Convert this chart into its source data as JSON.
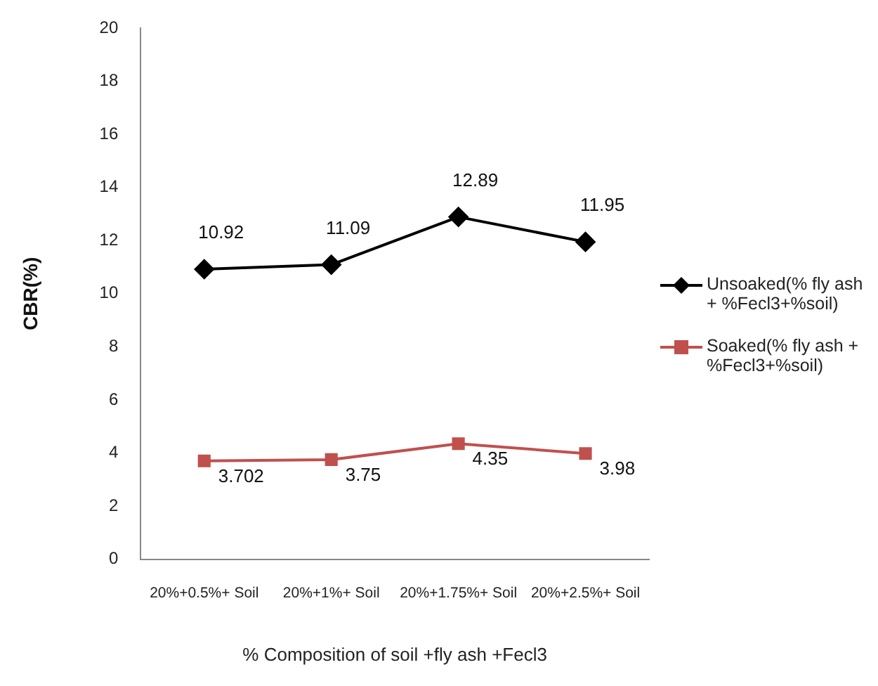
{
  "chart_data": {
    "type": "line",
    "xlabel": "% Composition of soil +fly ash +Fecl3",
    "ylabel": "CBR(%)",
    "categories": [
      "20%+0.5%+ Soil",
      "20%+1%+ Soil",
      "20%+1.75%+ Soil",
      "20%+2.5%+ Soil"
    ],
    "series": [
      {
        "name": "Unsoaked(% fly ash + %Fecl3+%soil)",
        "color": "#000000",
        "marker": "diamond",
        "values": [
          10.92,
          11.09,
          12.89,
          11.95
        ]
      },
      {
        "name": "Soaked(% fly ash + %Fecl3+%soil)",
        "color": "#c0504d",
        "marker": "square",
        "values": [
          3.702,
          3.75,
          4.35,
          3.98
        ]
      }
    ],
    "ylim": [
      0,
      20
    ],
    "yticks": [
      0,
      2,
      4,
      6,
      8,
      10,
      12,
      14,
      16,
      18,
      20
    ],
    "grid": false,
    "legend": "right",
    "data_labels": true
  }
}
